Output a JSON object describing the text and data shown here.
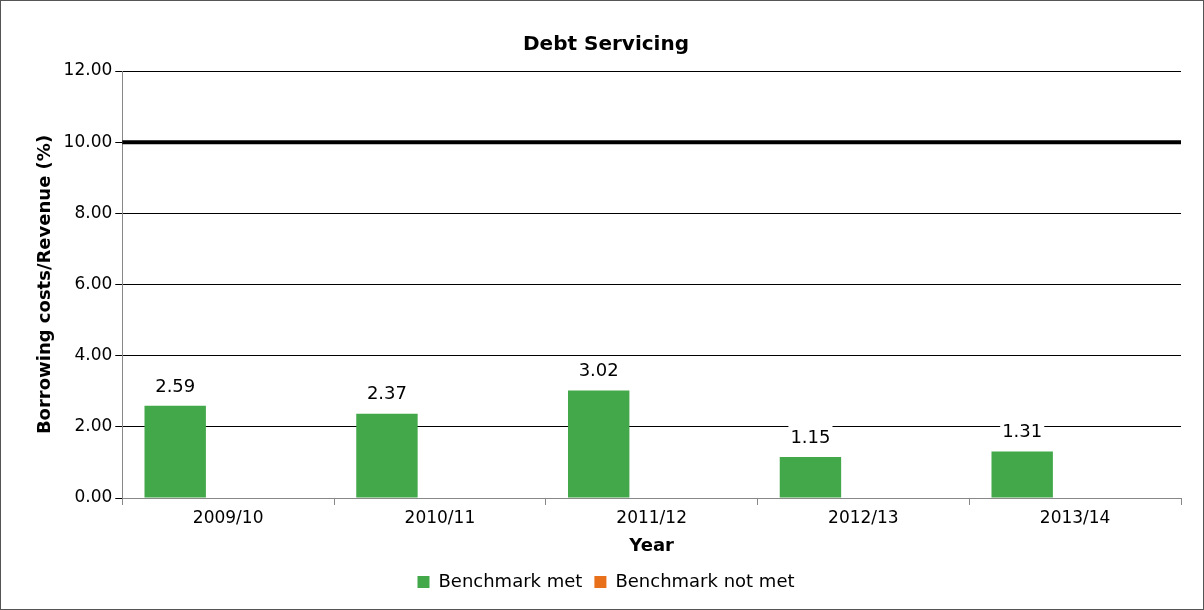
{
  "chart_data": {
    "type": "bar",
    "title": "Debt Servicing",
    "xlabel": "Year",
    "ylabel": "Borrowing costs/Revenue (%)",
    "categories": [
      "2009/10",
      "2010/11",
      "2011/12",
      "2012/13",
      "2013/14"
    ],
    "series": [
      {
        "name": "Benchmark met",
        "color": "#43a84a",
        "values": [
          2.59,
          2.37,
          3.02,
          1.15,
          1.31
        ]
      },
      {
        "name": "Benchmark not met",
        "color": "#e8701a",
        "values": [
          null,
          null,
          null,
          null,
          null
        ]
      }
    ],
    "ylim": [
      0,
      12
    ],
    "yticks": [
      {
        "value": 0,
        "label": "0.00"
      },
      {
        "value": 2,
        "label": "2.00"
      },
      {
        "value": 4,
        "label": "4.00"
      },
      {
        "value": 6,
        "label": "6.00"
      },
      {
        "value": 8,
        "label": "8.00"
      },
      {
        "value": 10,
        "label": "10.00"
      },
      {
        "value": 12,
        "label": "12.00"
      }
    ],
    "ref_lines": [
      {
        "axis": "y",
        "value": 10,
        "color": "#000000"
      }
    ],
    "data_labels": true,
    "grid": "y",
    "legend": "bottom"
  }
}
